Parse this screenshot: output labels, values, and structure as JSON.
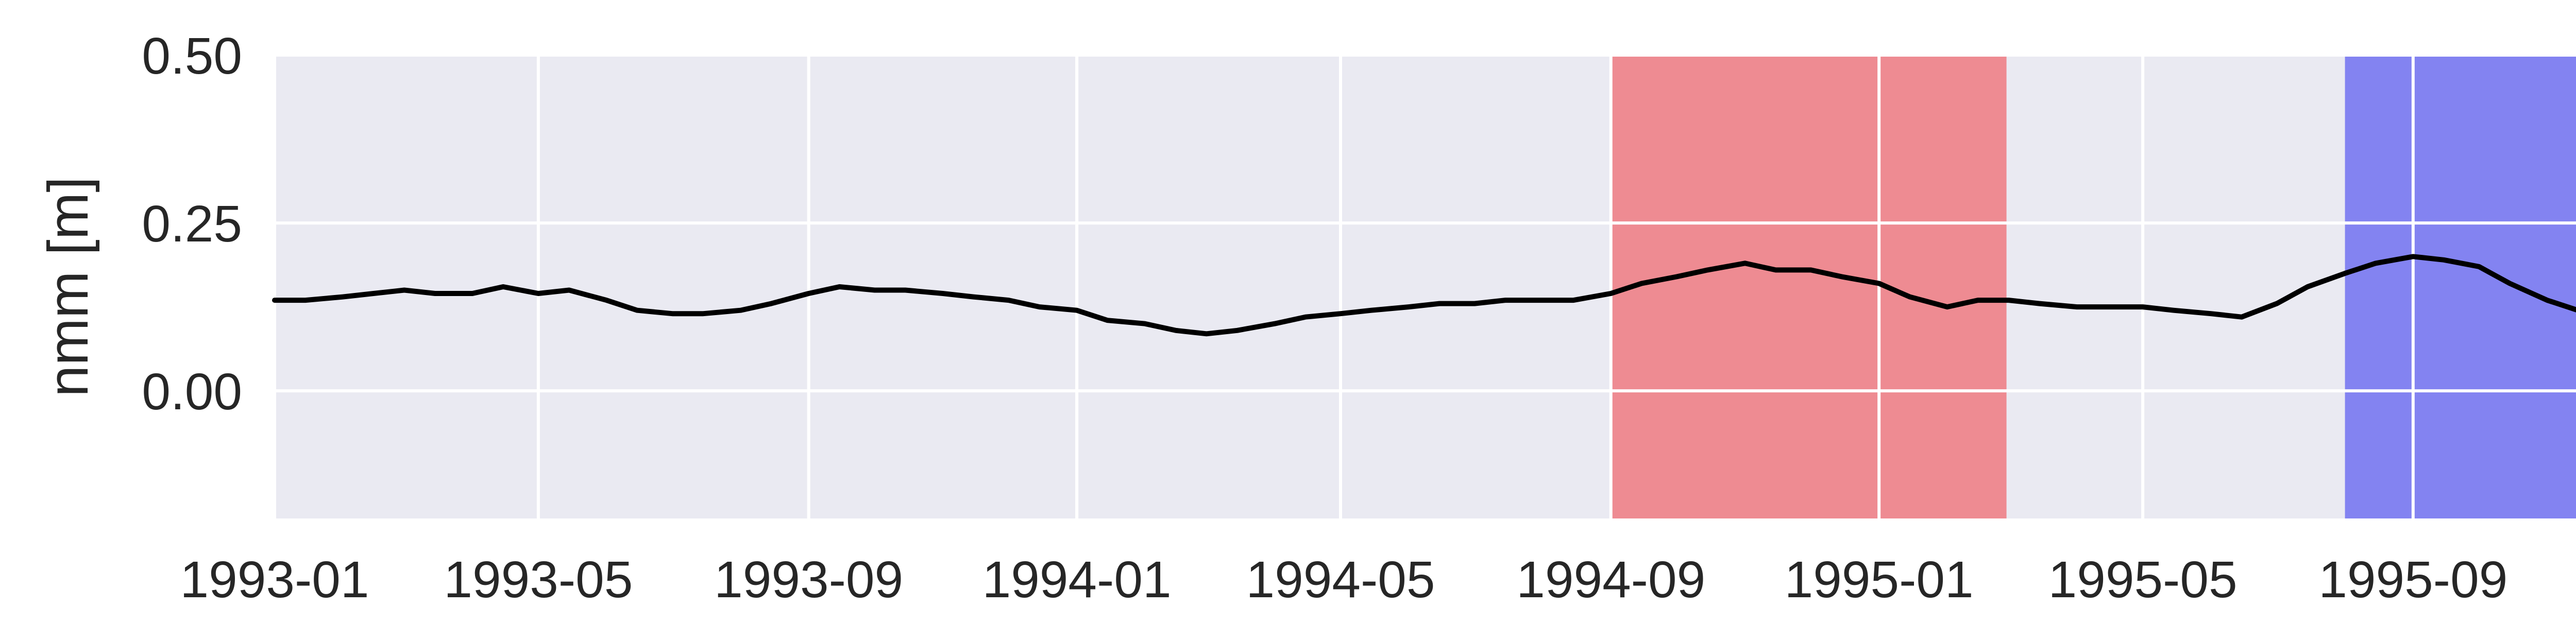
{
  "chart_data": {
    "type": "line",
    "title": "",
    "xlabel": "",
    "ylabel": "nmm [m]",
    "xlim": [
      "1993-01-01",
      "1995-12-31"
    ],
    "ylim": [
      -0.19,
      0.5
    ],
    "xticks": [
      "1993-01",
      "1993-05",
      "1993-09",
      "1994-01",
      "1994-05",
      "1994-09",
      "1995-01",
      "1995-05",
      "1995-09"
    ],
    "xtick_dates": [
      "1993-01-01",
      "1993-05-01",
      "1993-09-01",
      "1994-01-01",
      "1994-05-01",
      "1994-09-01",
      "1995-01-01",
      "1995-05-01",
      "1995-09-01"
    ],
    "yticks": [
      "0.50",
      "0.25",
      "0.00"
    ],
    "ytick_values": [
      0.5,
      0.25,
      0.0
    ],
    "grid": true,
    "background": "#eaeaf2",
    "grid_color": "#ffffff",
    "line_color": "#000000",
    "shaded_spans": [
      {
        "start": "1994-09-01",
        "end": "1995-02-28",
        "color": "#f0585e"
      },
      {
        "start": "1995-08-01",
        "end": "1995-12-31",
        "color": "#4b4bf0"
      }
    ],
    "series": [
      {
        "x": [
          "1993-01-01",
          "1993-01-15",
          "1993-02-01",
          "1993-02-15",
          "1993-03-01",
          "1993-03-15",
          "1993-04-01",
          "1993-04-15",
          "1993-05-01",
          "1993-05-15",
          "1993-06-01",
          "1993-06-15",
          "1993-07-01",
          "1993-07-15",
          "1993-08-01",
          "1993-08-15",
          "1993-09-01",
          "1993-09-15",
          "1993-10-01",
          "1993-10-15",
          "1993-11-01",
          "1993-11-15",
          "1993-12-01",
          "1993-12-15",
          "1994-01-01",
          "1994-01-15",
          "1994-02-01",
          "1994-02-15",
          "1994-03-01",
          "1994-03-15",
          "1994-04-01",
          "1994-04-15",
          "1994-05-01",
          "1994-05-15",
          "1994-06-01",
          "1994-06-15",
          "1994-07-01",
          "1994-07-15",
          "1994-08-01",
          "1994-08-15",
          "1994-09-01",
          "1994-09-15",
          "1994-10-01",
          "1994-10-15",
          "1994-11-01",
          "1994-11-15",
          "1994-12-01",
          "1994-12-15",
          "1995-01-01",
          "1995-01-15",
          "1995-02-01",
          "1995-02-15",
          "1995-03-01",
          "1995-03-15",
          "1995-04-01",
          "1995-04-15",
          "1995-05-01",
          "1995-05-15",
          "1995-06-01",
          "1995-06-15",
          "1995-07-01",
          "1995-07-15",
          "1995-08-01",
          "1995-08-15",
          "1995-09-01",
          "1995-09-15",
          "1995-10-01",
          "1995-10-15",
          "1995-11-01",
          "1995-11-15",
          "1995-12-01",
          "1995-12-15",
          "1995-12-31"
        ],
        "y": [
          0.135,
          0.135,
          0.14,
          0.145,
          0.15,
          0.145,
          0.145,
          0.155,
          0.145,
          0.15,
          0.135,
          0.12,
          0.115,
          0.115,
          0.12,
          0.13,
          0.145,
          0.155,
          0.15,
          0.15,
          0.145,
          0.14,
          0.135,
          0.125,
          0.12,
          0.105,
          0.1,
          0.09,
          0.085,
          0.09,
          0.1,
          0.11,
          0.115,
          0.12,
          0.125,
          0.13,
          0.13,
          0.135,
          0.135,
          0.135,
          0.145,
          0.16,
          0.17,
          0.18,
          0.19,
          0.18,
          0.18,
          0.17,
          0.16,
          0.14,
          0.125,
          0.135,
          0.135,
          0.13,
          0.125,
          0.125,
          0.125,
          0.12,
          0.115,
          0.11,
          0.13,
          0.155,
          0.175,
          0.19,
          0.2,
          0.195,
          0.185,
          0.16,
          0.135,
          0.12,
          0.125,
          0.135,
          0.145
        ]
      }
    ]
  }
}
